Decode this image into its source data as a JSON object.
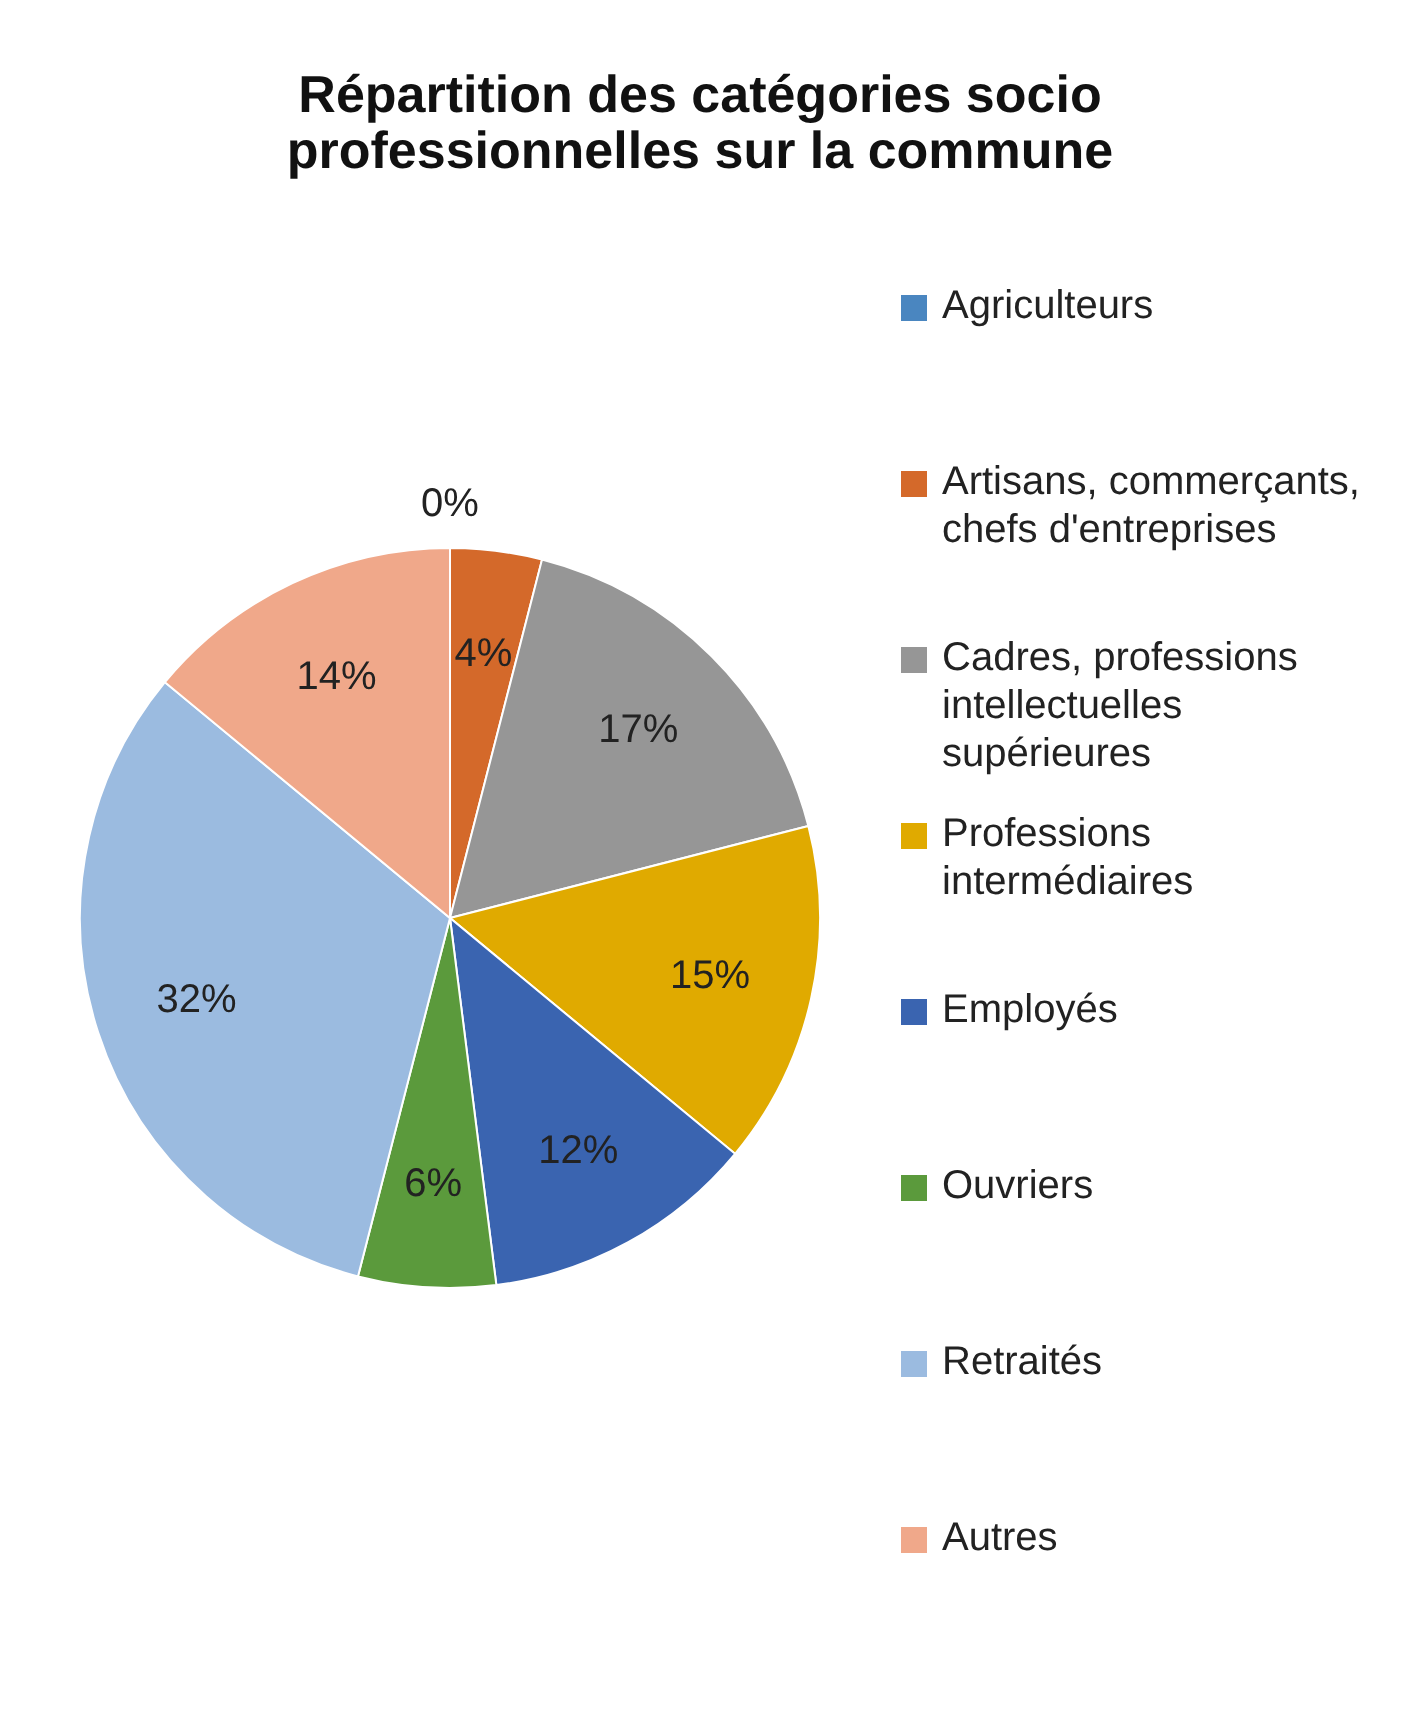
{
  "chart_data": {
    "type": "pie",
    "title": "Répartition des catégories socio professionnelles sur la commune",
    "categories": [
      "Agriculteurs",
      "Artisans, commerçants, chefs d'entreprises",
      "Cadres, professions intellectuelles supérieures",
      "Professions intermédiaires",
      "Employés",
      "Ouvriers",
      "Retraités",
      "Autres"
    ],
    "values": [
      0,
      4,
      17,
      15,
      12,
      6,
      32,
      14
    ],
    "colors": [
      "#4a86c0",
      "#d4692a",
      "#969696",
      "#e0aa00",
      "#3a64b0",
      "#5b9a3c",
      "#9bbbe0",
      "#f0a88a"
    ],
    "value_labels": [
      "0%",
      "4%",
      "17%",
      "15%",
      "12%",
      "6%",
      "32%",
      "14%"
    ],
    "legend": "right"
  }
}
